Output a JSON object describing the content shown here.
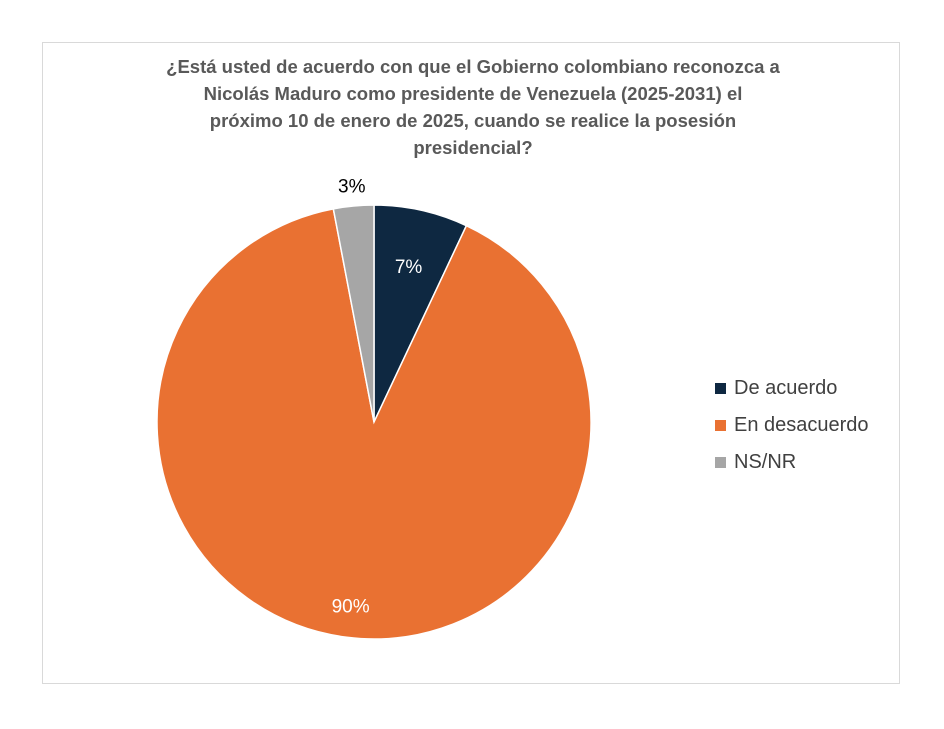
{
  "chart_data": {
    "type": "pie",
    "title": "¿Está usted de acuerdo con que el Gobierno colombiano reconozca a Nicolás Maduro como presidente de Venezuela (2025-2031) el próximo 10 de enero de 2025, cuando se realice la posesión presidencial?",
    "title_lines": [
      "¿Está usted de acuerdo con que el Gobierno colombiano reconozca a",
      "Nicolás Maduro como presidente de Venezuela (2025-2031) el",
      "próximo 10 de enero de 2025, cuando se realice la posesión",
      "presidencial?"
    ],
    "categories": [
      "De acuerdo",
      "En desacuerdo",
      "NS/NR"
    ],
    "values": [
      7,
      90,
      3
    ],
    "data_labels": [
      "7%",
      "90%",
      "3%"
    ],
    "colors": [
      "#0e2841",
      "#e97132",
      "#a6a6a6"
    ],
    "label_colors": [
      "#ffffff",
      "#ffffff",
      "#000000"
    ],
    "legend_position": "right",
    "start_angle_deg": 0,
    "direction": "clockwise"
  }
}
